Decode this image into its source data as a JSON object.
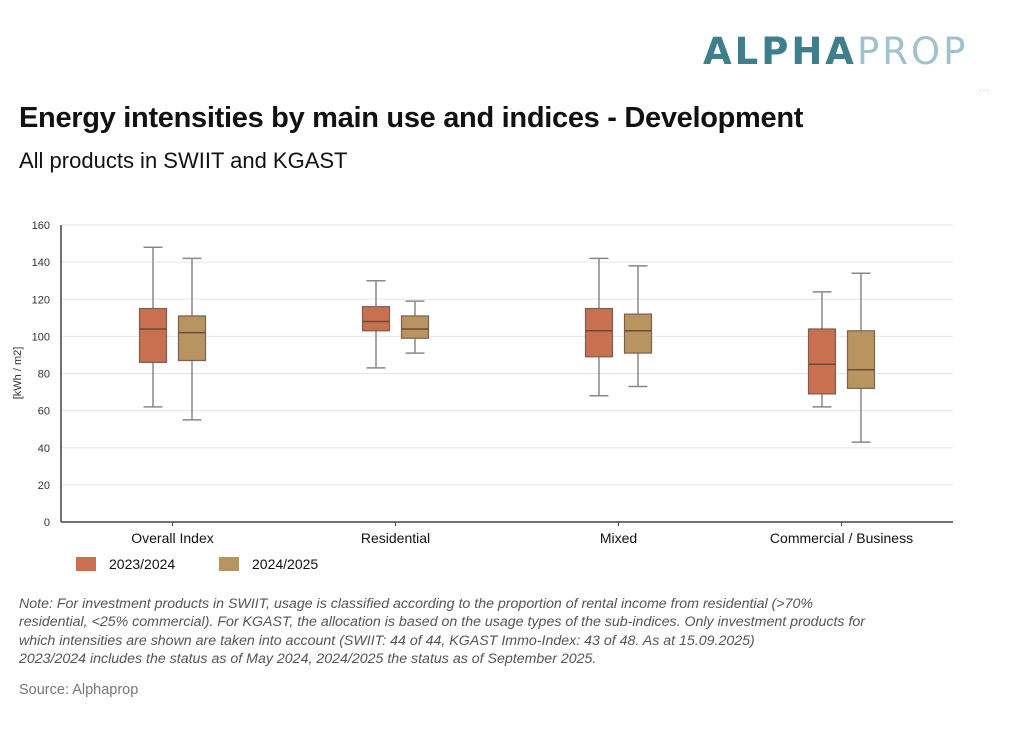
{
  "brand": {
    "logo_part1": "ALPHA",
    "logo_part2": "PROP",
    "logo_color1": "#3f7f8c",
    "logo_color2": "#9fc3cc"
  },
  "header": {
    "title": "Energy intensities by main use and indices - Development",
    "subtitle": "All products in SWIIT and KGAST"
  },
  "chart_data": {
    "type": "boxplot",
    "title": "Energy intensities by main use and indices - Development",
    "subtitle": "All products in SWIIT and KGAST",
    "xlabel": "",
    "ylabel": "[kWh / m2]",
    "ylim": [
      0,
      160
    ],
    "yticks": [
      0,
      20,
      40,
      60,
      80,
      100,
      120,
      140,
      160
    ],
    "grid": true,
    "legend_position": "bottom-left",
    "categories": [
      "Overall Index",
      "Residential",
      "Mixed",
      "Commercial / Business"
    ],
    "series": [
      {
        "name": "2023/2024",
        "color": "#c8704f",
        "boxes": [
          {
            "min": 62,
            "q1": 86,
            "median": 104,
            "q3": 115,
            "max": 148
          },
          {
            "min": 83,
            "q1": 103,
            "median": 108,
            "q3": 116,
            "max": 130
          },
          {
            "min": 68,
            "q1": 89,
            "median": 103,
            "q3": 115,
            "max": 142
          },
          {
            "min": 62,
            "q1": 69,
            "median": 85,
            "q3": 104,
            "max": 124
          }
        ]
      },
      {
        "name": "2024/2025",
        "color": "#b89560",
        "boxes": [
          {
            "min": 55,
            "q1": 87,
            "median": 102,
            "q3": 111,
            "max": 142
          },
          {
            "min": 91,
            "q1": 99,
            "median": 104,
            "q3": 111,
            "max": 119
          },
          {
            "min": 73,
            "q1": 91,
            "median": 103,
            "q3": 112,
            "max": 138
          },
          {
            "min": 43,
            "q1": 72,
            "median": 82,
            "q3": 103,
            "max": 134
          }
        ]
      }
    ]
  },
  "legend": [
    {
      "label": "2023/2024",
      "color": "#c8704f"
    },
    {
      "label": "2024/2025",
      "color": "#b89560"
    }
  ],
  "footer": {
    "note": "Note: For investment products in SWIIT, usage is classified according to the proportion of rental income from residential (>70% residential, <25% commercial). For KGAST, the allocation is based on the usage types of the sub-indices. Only investment products for which intensities are shown are taken into account (SWIIT: 44 of 44, KGAST Immo-Index: 43 of 48. As at 15.09.2025) 2023/2024 includes the status as of May 2024, 2024/2025 the status as of September 2025.",
    "note_lines": [
      "Note: For investment products in SWIIT, usage is classified according to the proportion of rental income from residential (>70%",
      "residential, <25% commercial). For KGAST, the allocation is based on the usage types of the sub-indices. Only investment products for",
      "which intensities are shown are taken into account (SWIIT: 44 of 44, KGAST Immo-Index: 43 of 48. As at 15.09.2025)",
      "2023/2024 includes the status as of May 2024, 2024/2025 the status as of September 2025."
    ],
    "source": "Source: Alphaprop"
  }
}
